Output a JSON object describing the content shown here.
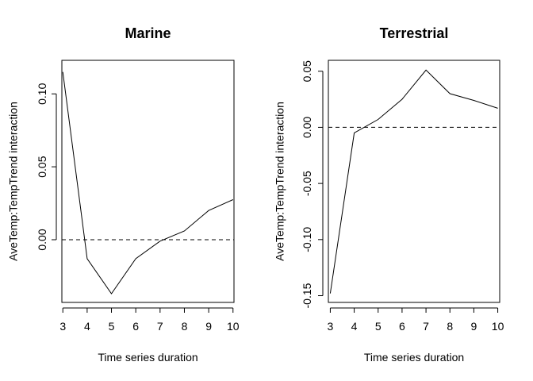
{
  "chart_data": [
    {
      "type": "line",
      "title": "Marine",
      "xlabel": "Time series duration",
      "ylabel": "AveTemp:TempTrend interaction",
      "x": [
        3,
        4,
        5,
        6,
        7,
        8,
        9,
        10
      ],
      "values": [
        0.115,
        -0.013,
        -0.037,
        -0.013,
        -0.001,
        0.006,
        0.02,
        0.0275
      ],
      "xlim": [
        2.96,
        10.04
      ],
      "ylim": [
        -0.043,
        0.123
      ],
      "xticks": [
        3,
        4,
        5,
        6,
        7,
        8,
        9,
        10
      ],
      "yticks": [
        0,
        0.05,
        0.1
      ],
      "ytick_labels": [
        "0.00",
        "0.05",
        "0.10"
      ],
      "reference_line": {
        "y": 0,
        "style": "dashed"
      },
      "grid": false
    },
    {
      "type": "line",
      "title": "Terrestrial",
      "xlabel": "Time series duration",
      "ylabel": "AveTemp:TempTrend interaction",
      "x": [
        3,
        4,
        5,
        6,
        7,
        8,
        9,
        10
      ],
      "values": [
        -0.148,
        -0.005,
        0.007,
        0.025,
        0.051,
        0.03,
        0.024,
        0.017
      ],
      "xlim": [
        2.92,
        10.08
      ],
      "ylim": [
        -0.156,
        0.0597
      ],
      "xticks": [
        3,
        4,
        5,
        6,
        7,
        8,
        9,
        10
      ],
      "yticks": [
        -0.15,
        -0.1,
        -0.05,
        0,
        0.05
      ],
      "ytick_labels": [
        "-0.15",
        "-0.10",
        "-0.05",
        "0.00",
        "0.05"
      ],
      "reference_line": {
        "y": 0,
        "style": "dashed"
      },
      "grid": false
    }
  ]
}
